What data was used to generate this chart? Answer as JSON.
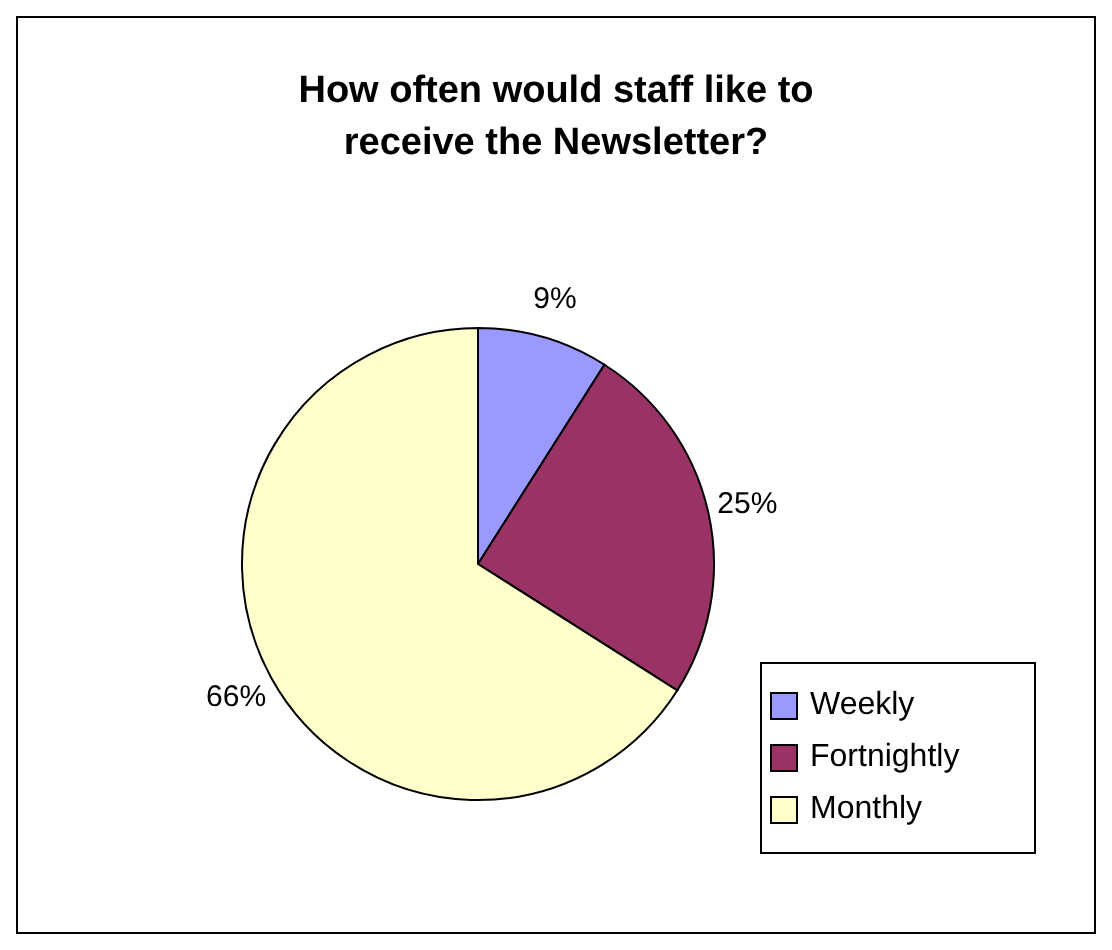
{
  "chart_data": {
    "type": "pie",
    "title": "How often would staff like to receive the Newsletter?",
    "categories": [
      "Weekly",
      "Fortnightly",
      "Monthly"
    ],
    "values": [
      9,
      25,
      66
    ],
    "colors": [
      "#9999ff",
      "#993366",
      "#ffffcc"
    ],
    "value_labels": [
      "9%",
      "25%",
      "66%"
    ],
    "legend": "bottom right"
  }
}
